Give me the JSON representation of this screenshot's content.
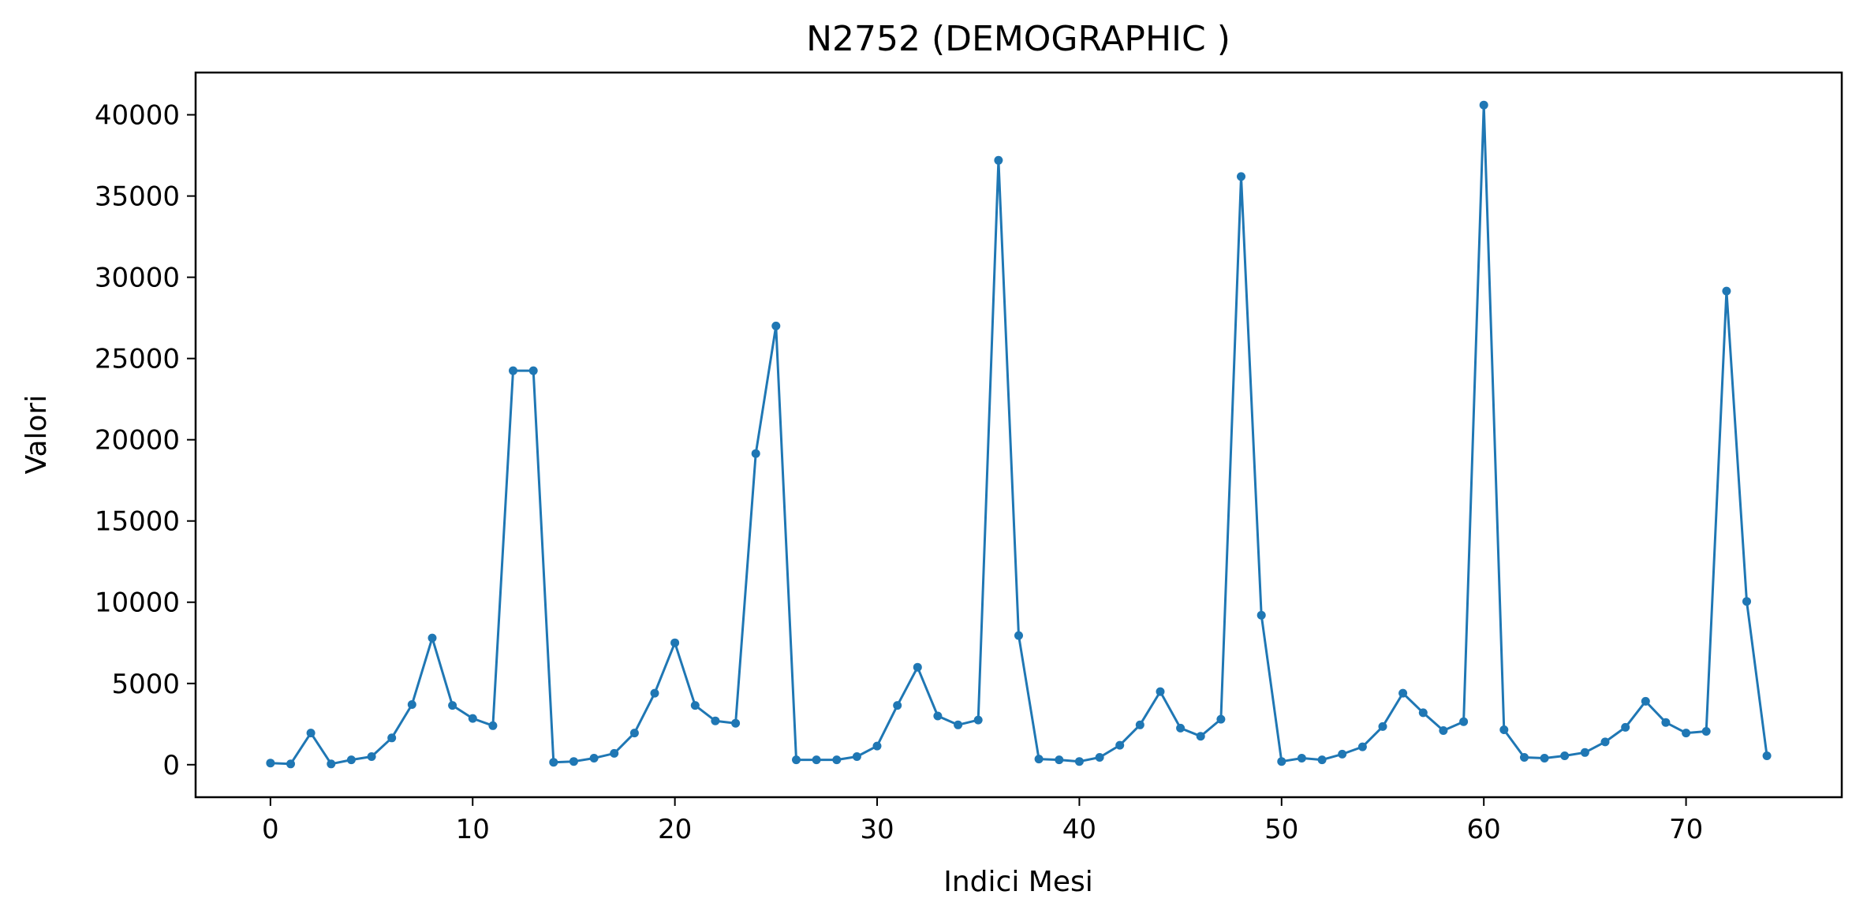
{
  "chart_data": {
    "type": "line",
    "title": "N2752 (DEMOGRAPHIC )",
    "xlabel": "Indici Mesi",
    "ylabel": "Valori",
    "xlim": [
      -3.7,
      77.7
    ],
    "ylim": [
      -2000,
      42600
    ],
    "xticks": [
      0,
      10,
      20,
      30,
      40,
      50,
      60,
      70
    ],
    "yticks": [
      0,
      5000,
      10000,
      15000,
      20000,
      25000,
      30000,
      35000,
      40000
    ],
    "grid": false,
    "marker": "circle",
    "series": [
      {
        "color": "#1f77b4",
        "x": [
          0,
          1,
          2,
          3,
          4,
          5,
          6,
          7,
          8,
          9,
          10,
          11,
          12,
          13,
          14,
          15,
          16,
          17,
          18,
          19,
          20,
          21,
          22,
          23,
          24,
          25,
          26,
          27,
          28,
          29,
          30,
          31,
          32,
          33,
          34,
          35,
          36,
          37,
          38,
          39,
          40,
          41,
          42,
          43,
          44,
          45,
          46,
          47,
          48,
          49,
          50,
          51,
          52,
          53,
          54,
          55,
          56,
          57,
          58,
          59,
          60,
          61,
          62,
          63,
          64,
          65,
          66,
          67,
          68,
          69,
          70,
          71,
          72,
          73,
          74
        ],
        "values": [
          100,
          50,
          1950,
          50,
          300,
          500,
          1650,
          3700,
          7800,
          3650,
          2850,
          2400,
          24250,
          24250,
          150,
          200,
          400,
          700,
          1950,
          4400,
          7500,
          3650,
          2700,
          2550,
          19150,
          27000,
          300,
          300,
          300,
          500,
          1150,
          3650,
          6000,
          3000,
          2450,
          2750,
          37200,
          7950,
          350,
          300,
          200,
          450,
          1200,
          2450,
          4500,
          2250,
          1750,
          2800,
          36200,
          9200,
          200,
          400,
          300,
          650,
          1100,
          2350,
          4400,
          3200,
          2100,
          2650,
          40600,
          2150,
          450,
          400,
          550,
          750,
          1400,
          2300,
          3900,
          2600,
          1950,
          2050,
          29150,
          10050,
          550
        ]
      }
    ]
  }
}
